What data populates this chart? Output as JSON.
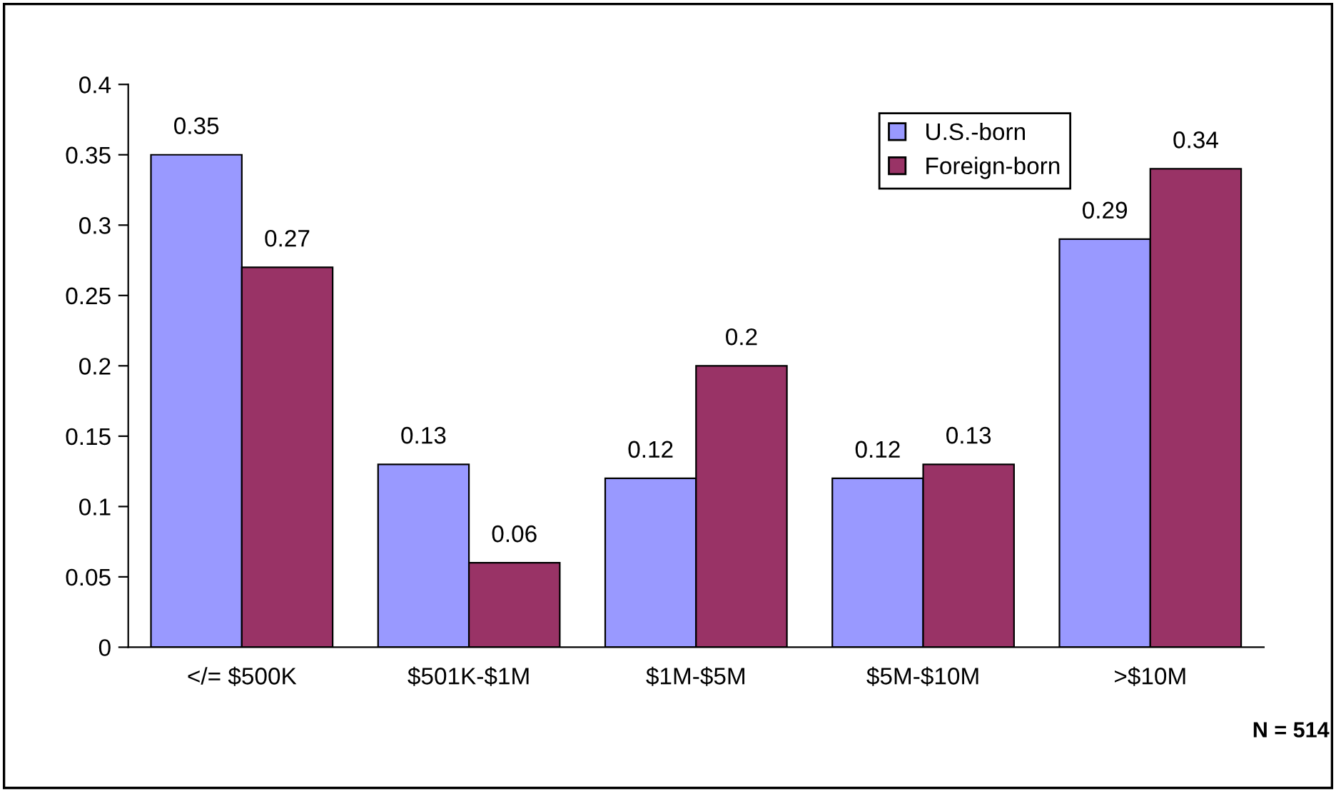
{
  "chart_data": {
    "type": "bar",
    "categories": [
      "</= $500K",
      "$501K-$1M",
      "$1M-$5M",
      "$5M-$10M",
      ">$10M"
    ],
    "series": [
      {
        "name": "U.S.-born",
        "color": "#9999ff",
        "values": [
          0.35,
          0.13,
          0.12,
          0.12,
          0.29
        ]
      },
      {
        "name": "Foreign-born",
        "color": "#993366",
        "values": [
          0.27,
          0.06,
          0.2,
          0.13,
          0.34
        ]
      }
    ],
    "ylim": [
      0,
      0.4
    ],
    "yticks": [
      0,
      0.05,
      0.1,
      0.15,
      0.2,
      0.25,
      0.3,
      0.35,
      0.4
    ],
    "data_labels": true,
    "grid": false,
    "legend": "top right",
    "annotations": [
      "N = 514"
    ]
  }
}
